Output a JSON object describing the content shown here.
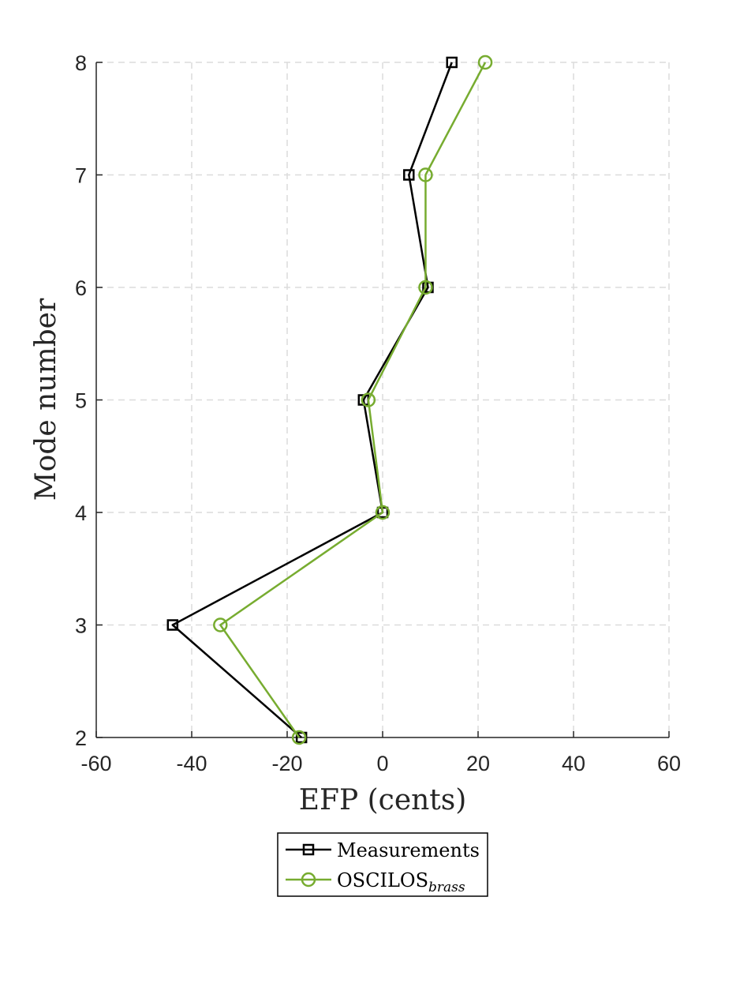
{
  "chart_data": {
    "type": "line",
    "title": "",
    "xlabel": "EFP (cents)",
    "ylabel": "Mode number",
    "xlim": [
      -60,
      60
    ],
    "ylim": [
      2,
      8
    ],
    "xticks": [
      -60,
      -40,
      -20,
      0,
      20,
      40,
      60
    ],
    "yticks": [
      2,
      3,
      4,
      5,
      6,
      7,
      8
    ],
    "xtick_labels": [
      "-60",
      "-40",
      "-20",
      "0",
      "20",
      "40",
      "60"
    ],
    "ytick_labels": [
      "2",
      "3",
      "4",
      "5",
      "6",
      "7",
      "8"
    ],
    "grid": true,
    "legend_position": "bottom-outside",
    "series": [
      {
        "name": "Measurements",
        "color": "#000000",
        "marker": "square",
        "x": [
          -17,
          -44,
          0,
          -4,
          9.5,
          5.5,
          14.5
        ],
        "y": [
          2,
          3,
          4,
          5,
          6,
          7,
          8
        ]
      },
      {
        "name": "OSCILOS",
        "name_subscript": "brass",
        "color": "#77ac30",
        "marker": "circle",
        "x": [
          -17.5,
          -34,
          0,
          -3,
          9,
          9,
          21.5
        ],
        "y": [
          2,
          3,
          4,
          5,
          6,
          7,
          8
        ]
      }
    ]
  }
}
